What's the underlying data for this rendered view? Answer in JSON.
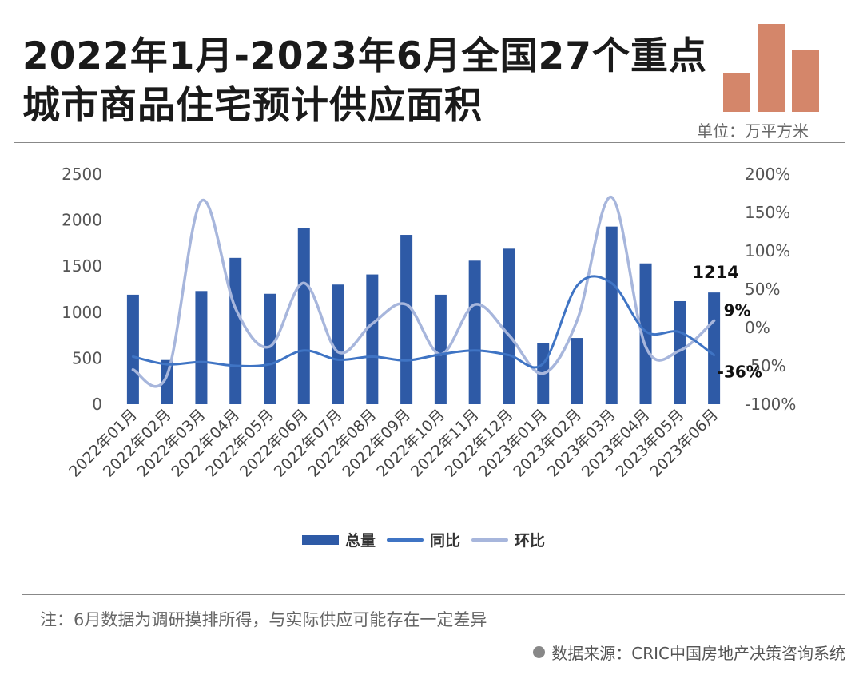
{
  "title": "2022年1月-2023年6月全国27个重点城市商品住宅预计供应面积",
  "unit": "单位：万平方米",
  "note": "注：6月数据为调研摸排所得，与实际供应可能存在一定差异",
  "source": "数据来源：CRIC中国房地产决策咨询系统",
  "colors": {
    "bar": "#2e5aa6",
    "yoy": "#3f74c4",
    "mom": "#a7b6dc",
    "logo": "#d4866a"
  },
  "chart_data": {
    "type": "bar+line",
    "categories": [
      "2022年01月",
      "2022年02月",
      "2022年03月",
      "2022年04月",
      "2022年05月",
      "2022年06月",
      "2022年07月",
      "2022年08月",
      "2022年09月",
      "2022年10月",
      "2022年11月",
      "2022年12月",
      "2023年01月",
      "2023年02月",
      "2023年03月",
      "2023年04月",
      "2023年05月",
      "2023年06月"
    ],
    "series": [
      {
        "name": "总量",
        "type": "bar",
        "axis": "left",
        "values": [
          1190,
          480,
          1230,
          1590,
          1200,
          1910,
          1300,
          1410,
          1840,
          1190,
          1560,
          1690,
          660,
          720,
          1930,
          1530,
          1120,
          1214
        ]
      },
      {
        "name": "同比",
        "type": "line",
        "axis": "right",
        "values": [
          -38,
          -48,
          -45,
          -50,
          -48,
          -30,
          -42,
          -38,
          -43,
          -35,
          -30,
          -36,
          -47,
          55,
          58,
          -5,
          -6,
          -36
        ]
      },
      {
        "name": "环比",
        "type": "line",
        "axis": "right",
        "values": [
          -55,
          -62,
          165,
          25,
          -25,
          58,
          -32,
          5,
          30,
          -35,
          30,
          -10,
          -60,
          10,
          170,
          -25,
          -30,
          9
        ]
      }
    ],
    "left_axis": {
      "min": 0,
      "max": 2500,
      "ticks": [
        "0",
        "500",
        "1000",
        "1500",
        "2000",
        "2500"
      ]
    },
    "right_axis": {
      "min": -100,
      "max": 200,
      "ticks": [
        "-100%",
        "-50%",
        "0%",
        "50%",
        "100%",
        "150%",
        "200%"
      ]
    },
    "annotations": {
      "bar_last": "1214",
      "mom_last": "9%",
      "yoy_last": "-36%"
    },
    "legend": [
      "总量",
      "同比",
      "环比"
    ]
  }
}
